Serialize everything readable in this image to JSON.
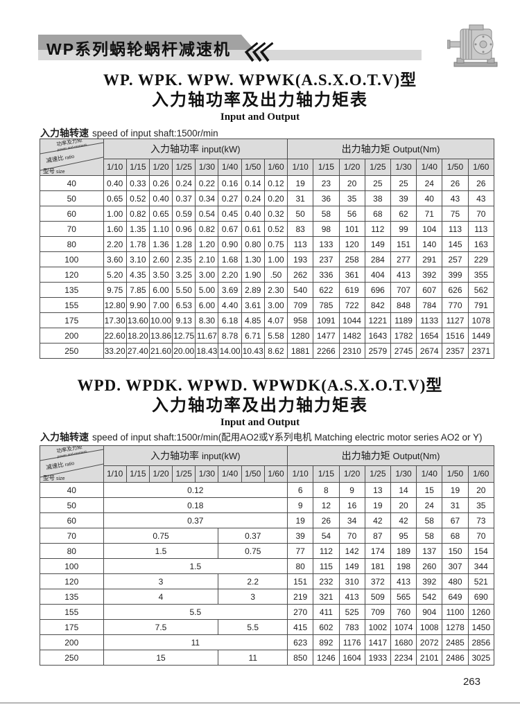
{
  "colors": {
    "banner_dark": "#a2a2a2",
    "banner_light": "#d8d8d8",
    "header_bg": "#dcdcdc",
    "border": "#4a4a4a",
    "text": "#1a1a1a",
    "rule": "#b5b5b5"
  },
  "banner": {
    "title": "WP系列蜗轮蜗杆减速机"
  },
  "section1": {
    "title_model": "WP. WPK. WPW. WPWK(A.S.X.O.T.V)型",
    "title_cn": "入力轴功率及出力轴力矩表",
    "title_en": "Input and Output",
    "note_cn": "入力轴转速",
    "note_en": "speed of input shaft:1500r/min"
  },
  "section2": {
    "title_model": "WPD. WPDK. WPWD. WPWDK(A.S.X.O.T.V)型",
    "title_cn": "入力轴功率及出力轴力矩表",
    "title_en": "Input and Output",
    "note_cn": "入力轴转速",
    "note_en": "speed of input shaft:1500r/min(配用AO2或Y系列电机 Matching electric motor series AO2 or Y)"
  },
  "table_common": {
    "corner": {
      "power_cn": "功率及力矩",
      "power_en": "power and moment",
      "mid_cn": "减速比",
      "mid_en": "ratio",
      "bottom_cn": "型号",
      "bottom_en": "size"
    },
    "input_cn": "入力轴功率",
    "input_en": "input(kW)",
    "output_cn": "出力轴力矩",
    "output_en": "Output(Nm)",
    "ratios": [
      "1/10",
      "1/15",
      "1/20",
      "1/25",
      "1/30",
      "1/40",
      "1/50",
      "1/60"
    ]
  },
  "table1": {
    "rows": [
      {
        "size": "40",
        "input": [
          "0.40",
          "0.33",
          "0.26",
          "0.24",
          "0.22",
          "0.16",
          "0.14",
          "0.12"
        ],
        "output": [
          "19",
          "23",
          "20",
          "25",
          "25",
          "24",
          "26",
          "26"
        ]
      },
      {
        "size": "50",
        "input": [
          "0.65",
          "0.52",
          "0.40",
          "0.37",
          "0.34",
          "0.27",
          "0.24",
          "0.20"
        ],
        "output": [
          "31",
          "36",
          "35",
          "38",
          "39",
          "40",
          "43",
          "43"
        ]
      },
      {
        "size": "60",
        "input": [
          "1.00",
          "0.82",
          "0.65",
          "0.59",
          "0.54",
          "0.45",
          "0.40",
          "0.32"
        ],
        "output": [
          "50",
          "58",
          "56",
          "68",
          "62",
          "71",
          "75",
          "70"
        ]
      },
      {
        "size": "70",
        "input": [
          "1.60",
          "1.35",
          "1.10",
          "0.96",
          "0.82",
          "0.67",
          "0.61",
          "0.52"
        ],
        "output": [
          "83",
          "98",
          "101",
          "112",
          "99",
          "104",
          "113",
          "113"
        ]
      },
      {
        "size": "80",
        "input": [
          "2.20",
          "1.78",
          "1.36",
          "1.28",
          "1.20",
          "0.90",
          "0.80",
          "0.75"
        ],
        "output": [
          "113",
          "133",
          "120",
          "149",
          "151",
          "140",
          "145",
          "163"
        ]
      },
      {
        "size": "100",
        "input": [
          "3.60",
          "3.10",
          "2.60",
          "2.35",
          "2.10",
          "1.68",
          "1.30",
          "1.00"
        ],
        "output": [
          "193",
          "237",
          "258",
          "284",
          "277",
          "291",
          "257",
          "229"
        ]
      },
      {
        "size": "120",
        "input": [
          "5.20",
          "4.35",
          "3.50",
          "3.25",
          "3.00",
          "2.20",
          "1.90",
          ".50"
        ],
        "output": [
          "262",
          "336",
          "361",
          "404",
          "413",
          "392",
          "399",
          "355"
        ]
      },
      {
        "size": "135",
        "input": [
          "9.75",
          "7.85",
          "6.00",
          "5.50",
          "5.00",
          "3.69",
          "2.89",
          "2.30"
        ],
        "output": [
          "540",
          "622",
          "619",
          "696",
          "707",
          "607",
          "626",
          "562"
        ]
      },
      {
        "size": "155",
        "input": [
          "12.80",
          "9.90",
          "7.00",
          "6.53",
          "6.00",
          "4.40",
          "3.61",
          "3.00"
        ],
        "output": [
          "709",
          "785",
          "722",
          "842",
          "848",
          "784",
          "770",
          "791"
        ]
      },
      {
        "size": "175",
        "input": [
          "17.30",
          "13.60",
          "10.00",
          "9.13",
          "8.30",
          "6.18",
          "4.85",
          "4.07"
        ],
        "output": [
          "958",
          "1091",
          "1044",
          "1221",
          "1189",
          "1133",
          "1127",
          "1078"
        ]
      },
      {
        "size": "200",
        "input": [
          "22.60",
          "18.20",
          "13.86",
          "12.75",
          "11.67",
          "8.78",
          "6.71",
          "5.58"
        ],
        "output": [
          "1280",
          "1477",
          "1482",
          "1643",
          "1782",
          "1654",
          "1516",
          "1449"
        ]
      },
      {
        "size": "250",
        "input": [
          "33.20",
          "27.40",
          "21.60",
          "20.00",
          "18.43",
          "14.00",
          "10.43",
          "8.62"
        ],
        "output": [
          "1881",
          "2266",
          "2310",
          "2579",
          "2745",
          "2674",
          "2357",
          "2371"
        ]
      }
    ]
  },
  "table2": {
    "rows": [
      {
        "size": "40",
        "input_merged": [
          {
            "value": "0.12",
            "span": 8
          }
        ],
        "output": [
          "6",
          "8",
          "9",
          "13",
          "14",
          "15",
          "19",
          "20"
        ]
      },
      {
        "size": "50",
        "input_merged": [
          {
            "value": "0.18",
            "span": 8
          }
        ],
        "output": [
          "9",
          "12",
          "16",
          "19",
          "20",
          "24",
          "31",
          "35"
        ]
      },
      {
        "size": "60",
        "input_merged": [
          {
            "value": "0.37",
            "span": 8
          }
        ],
        "output": [
          "19",
          "26",
          "34",
          "42",
          "42",
          "58",
          "67",
          "73"
        ]
      },
      {
        "size": "70",
        "input_merged": [
          {
            "value": "0.75",
            "span": 5
          },
          {
            "value": "0.37",
            "span": 3
          }
        ],
        "output": [
          "39",
          "54",
          "70",
          "87",
          "95",
          "58",
          "68",
          "70"
        ]
      },
      {
        "size": "80",
        "input_merged": [
          {
            "value": "1.5",
            "span": 5
          },
          {
            "value": "0.75",
            "span": 3
          }
        ],
        "output": [
          "77",
          "112",
          "142",
          "174",
          "189",
          "137",
          "150",
          "154"
        ]
      },
      {
        "size": "100",
        "input_merged": [
          {
            "value": "1.5",
            "span": 8
          }
        ],
        "output": [
          "80",
          "115",
          "149",
          "181",
          "198",
          "260",
          "307",
          "344"
        ]
      },
      {
        "size": "120",
        "input_merged": [
          {
            "value": "3",
            "span": 5
          },
          {
            "value": "2.2",
            "span": 3
          }
        ],
        "output": [
          "151",
          "232",
          "310",
          "372",
          "413",
          "392",
          "480",
          "521"
        ]
      },
      {
        "size": "135",
        "input_merged": [
          {
            "value": "4",
            "span": 5
          },
          {
            "value": "3",
            "span": 3
          }
        ],
        "output": [
          "219",
          "321",
          "413",
          "509",
          "565",
          "542",
          "649",
          "690"
        ]
      },
      {
        "size": "155",
        "input_merged": [
          {
            "value": "5.5",
            "span": 8
          }
        ],
        "output": [
          "270",
          "411",
          "525",
          "709",
          "760",
          "904",
          "1100",
          "1260"
        ]
      },
      {
        "size": "175",
        "input_merged": [
          {
            "value": "7.5",
            "span": 5
          },
          {
            "value": "5.5",
            "span": 3
          }
        ],
        "output": [
          "415",
          "602",
          "783",
          "1002",
          "1074",
          "1008",
          "1278",
          "1450"
        ]
      },
      {
        "size": "200",
        "input_merged": [
          {
            "value": "11",
            "span": 8
          }
        ],
        "output": [
          "623",
          "892",
          "1176",
          "1417",
          "1680",
          "2072",
          "2485",
          "2856"
        ]
      },
      {
        "size": "250",
        "input_merged": [
          {
            "value": "15",
            "span": 5
          },
          {
            "value": "11",
            "span": 3
          }
        ],
        "output": [
          "850",
          "1246",
          "1604",
          "1933",
          "2234",
          "2101",
          "2486",
          "3025"
        ]
      }
    ]
  },
  "footer": {
    "page_number": "263"
  }
}
